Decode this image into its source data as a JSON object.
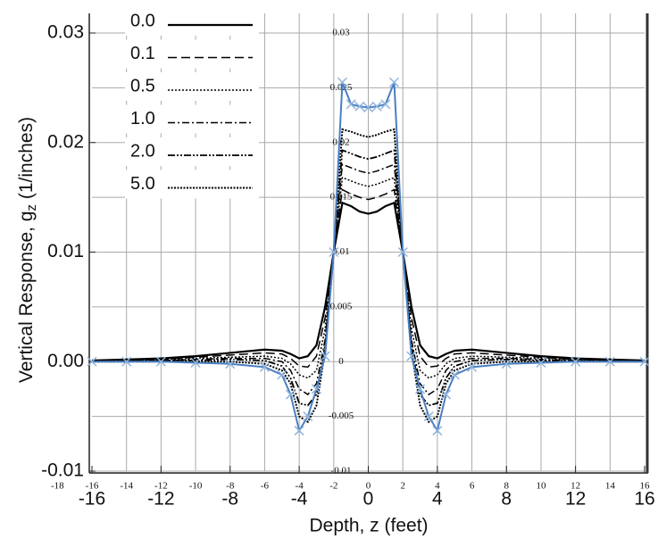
{
  "chart_data": {
    "type": "line",
    "x_label": "Depth, z (feet)",
    "y_label": {
      "text": "Vertical Response, g",
      "subscript": "z",
      "suffix": " (1/inches)"
    },
    "x": [
      -16,
      -14,
      -12,
      -10,
      -8,
      -6,
      -5,
      -4.5,
      -4,
      -3.5,
      -3,
      -2.5,
      -2,
      -1.5,
      -1,
      -0.5,
      0,
      0.5,
      1,
      1.5,
      2,
      2.5,
      3,
      3.5,
      4,
      4.5,
      5,
      6,
      8,
      10,
      12,
      14,
      16
    ],
    "series": [
      {
        "name": "0.0",
        "color": "#000000",
        "dash": "",
        "width": 2.2,
        "values": [
          0.0001,
          0.0002,
          0.0003,
          0.0005,
          0.0008,
          0.0011,
          0.001,
          0.0007,
          0.0003,
          0.0005,
          0.0015,
          0.005,
          0.01,
          0.0145,
          0.0142,
          0.0137,
          0.0135,
          0.0137,
          0.0142,
          0.0145,
          0.01,
          0.005,
          0.0015,
          0.0005,
          0.0003,
          0.0007,
          0.001,
          0.0011,
          0.0008,
          0.0005,
          0.0003,
          0.0002,
          0.0001
        ]
      },
      {
        "name": "0.1",
        "color": "#000000",
        "dash": "10,5",
        "width": 1.5,
        "values": [
          0.0001,
          0.0001,
          0.0002,
          0.0004,
          0.0006,
          0.0008,
          0.0007,
          0.0003,
          -0.0004,
          -0.0005,
          0.0005,
          0.004,
          0.01,
          0.0157,
          0.0153,
          0.015,
          0.0148,
          0.015,
          0.0153,
          0.0157,
          0.01,
          0.004,
          0.0005,
          -0.0005,
          -0.0004,
          0.0003,
          0.0007,
          0.0008,
          0.0006,
          0.0004,
          0.0002,
          0.0001,
          0.0001
        ]
      },
      {
        "name": "0.5",
        "color": "#000000",
        "dash": "2,2",
        "width": 1.5,
        "values": [
          0,
          0.0001,
          0.0002,
          0.0003,
          0.0004,
          0.0005,
          0.0003,
          -0.0002,
          -0.0012,
          -0.0015,
          -0.0008,
          0.003,
          0.01,
          0.0168,
          0.0165,
          0.0162,
          0.016,
          0.0162,
          0.0165,
          0.0168,
          0.01,
          0.003,
          -0.0008,
          -0.0015,
          -0.0012,
          -0.0002,
          0.0003,
          0.0005,
          0.0004,
          0.0003,
          0.0002,
          0.0001,
          0
        ]
      },
      {
        "name": "1.0",
        "color": "#000000",
        "dash": "8,3,2,3",
        "width": 1.5,
        "values": [
          0,
          0.0001,
          0.0001,
          0.0002,
          0.0003,
          0.0003,
          0,
          -0.0008,
          -0.0025,
          -0.003,
          -0.002,
          0.002,
          0.01,
          0.018,
          0.0177,
          0.0174,
          0.0172,
          0.0174,
          0.0177,
          0.018,
          0.01,
          0.002,
          -0.002,
          -0.003,
          -0.0025,
          -0.0008,
          0,
          0.0003,
          0.0003,
          0.0002,
          0.0001,
          0.0001,
          0
        ]
      },
      {
        "name": "2.0",
        "color": "#000000",
        "dash": "8,2,2,2,2,2",
        "width": 1.8,
        "values": [
          0,
          0,
          0.0001,
          0.0001,
          0.0002,
          0.0001,
          -0.0004,
          -0.0015,
          -0.0038,
          -0.004,
          -0.003,
          0.0015,
          0.01,
          0.0193,
          0.019,
          0.0187,
          0.0185,
          0.0187,
          0.019,
          0.0193,
          0.01,
          0.0015,
          -0.003,
          -0.004,
          -0.0038,
          -0.0015,
          -0.0004,
          0.0001,
          0.0002,
          0.0001,
          0.0001,
          0,
          0
        ]
      },
      {
        "name": "5.0",
        "color": "#000000",
        "dash": "2,1.5",
        "width": 2,
        "values": [
          0,
          0,
          0,
          0,
          0,
          -0.0002,
          -0.0008,
          -0.002,
          -0.005,
          -0.0055,
          -0.004,
          0.001,
          0.01,
          0.0212,
          0.021,
          0.0207,
          0.0205,
          0.0207,
          0.021,
          0.0212,
          0.01,
          0.001,
          -0.004,
          -0.0055,
          -0.005,
          -0.002,
          -0.0008,
          -0.0002,
          0,
          0,
          0,
          0,
          0
        ]
      },
      {
        "color": "#4a7fc1",
        "dash": "",
        "width": 2,
        "marker": "x",
        "values": [
          0,
          0,
          0,
          -0.0001,
          -0.0002,
          -0.0005,
          -0.0012,
          -0.003,
          -0.0063,
          -0.005,
          -0.0025,
          0.0005,
          0.01,
          0.0255,
          0.0235,
          0.0233,
          0.0232,
          0.0233,
          0.0235,
          0.0255,
          0.01,
          0.0005,
          -0.0025,
          -0.005,
          -0.0063,
          -0.003,
          -0.0012,
          -0.0005,
          -0.0002,
          -0.0001,
          0,
          0,
          0
        ]
      }
    ],
    "xlim": [
      -16,
      16
    ],
    "xticks": [
      -16,
      -12,
      -8,
      -4,
      0,
      4,
      8,
      12,
      16
    ],
    "ylim": [
      -0.01,
      0.03
    ],
    "yticks": [
      0.03,
      0.02,
      0.01,
      {
        "value": 0,
        "label": "0.00"
      },
      -0.01
    ],
    "x2lim": [
      -18,
      16
    ],
    "x2ticks": [
      -18,
      -16,
      -14,
      -12,
      -10,
      -8,
      -6,
      -4,
      -2,
      0,
      2,
      4,
      6,
      8,
      10,
      12,
      14,
      16
    ],
    "y2lim": [
      -0.01,
      0.03
    ],
    "y2ticks": [
      0.03,
      0.025,
      0.02,
      0.015,
      0.01,
      0.005,
      0,
      -0.005,
      -0.01
    ],
    "grid": true
  }
}
